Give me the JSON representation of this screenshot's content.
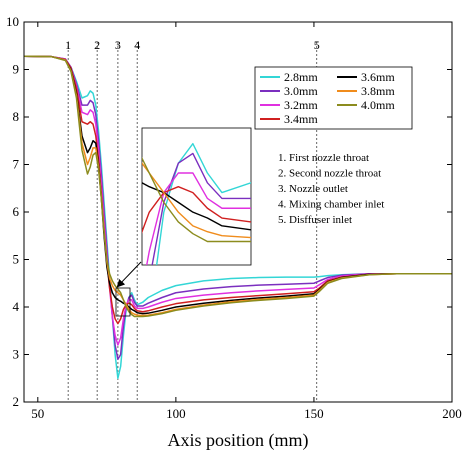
{
  "chart_data": {
    "type": "line",
    "xlabel": "Axis position (mm)",
    "ylabel": "",
    "xlim": [
      45,
      200
    ],
    "ylim": [
      2,
      10
    ],
    "x_ticks": [
      50,
      100,
      150,
      200
    ],
    "y_ticks": [
      2,
      3,
      4,
      5,
      6,
      7,
      8,
      9,
      10
    ],
    "grid": false,
    "legend_position": "top-right",
    "reference_lines": [
      {
        "label": "1",
        "x": 61
      },
      {
        "label": "2",
        "x": 71.5
      },
      {
        "label": "3",
        "x": 79
      },
      {
        "label": "4",
        "x": 86
      },
      {
        "label": "5",
        "x": 151
      }
    ],
    "annotations": [
      "1. First nozzle throat",
      "2. Second nozzle throat",
      "3. Nozzle outlet",
      "4. Mixing chamber inlet",
      "5. Disffuser inlet"
    ],
    "x": [
      45,
      55,
      60,
      62,
      64,
      66,
      68,
      69,
      70,
      71,
      72,
      73,
      74,
      75,
      76,
      77,
      78,
      79,
      80,
      81,
      82,
      83,
      84,
      85,
      86,
      88,
      90,
      95,
      100,
      110,
      120,
      130,
      140,
      150,
      152,
      155,
      160,
      170,
      180,
      190,
      200
    ],
    "series": [
      {
        "name": "2.8mm",
        "color": "#33d6d6",
        "values": [
          9.28,
          9.27,
          9.22,
          9.05,
          8.75,
          8.4,
          8.45,
          8.55,
          8.5,
          8.25,
          7.7,
          7.0,
          6.2,
          5.4,
          4.6,
          3.8,
          3.0,
          2.5,
          2.75,
          3.4,
          3.95,
          4.2,
          4.3,
          4.15,
          4.05,
          4.1,
          4.2,
          4.35,
          4.45,
          4.55,
          4.6,
          4.62,
          4.63,
          4.63,
          4.64,
          4.66,
          4.68,
          4.7,
          4.7,
          4.7,
          4.7
        ]
      },
      {
        "name": "3.0mm",
        "color": "#7b2fbf",
        "values": [
          9.28,
          9.27,
          9.22,
          9.05,
          8.7,
          8.25,
          8.25,
          8.35,
          8.3,
          8.05,
          7.5,
          6.8,
          6.0,
          5.25,
          4.5,
          3.8,
          3.2,
          2.9,
          3.0,
          3.6,
          4.0,
          4.2,
          4.25,
          4.1,
          4.02,
          4.02,
          4.08,
          4.2,
          4.3,
          4.38,
          4.43,
          4.46,
          4.48,
          4.5,
          4.55,
          4.62,
          4.67,
          4.7,
          4.7,
          4.7,
          4.7
        ]
      },
      {
        "name": "3.2mm",
        "color": "#e030e0",
        "values": [
          9.28,
          9.27,
          9.22,
          9.04,
          8.65,
          8.1,
          8.05,
          8.15,
          8.1,
          7.85,
          7.3,
          6.6,
          5.8,
          5.1,
          4.4,
          3.8,
          3.4,
          3.2,
          3.35,
          3.75,
          4.05,
          4.15,
          4.15,
          4.02,
          3.97,
          3.97,
          4.0,
          4.1,
          4.18,
          4.25,
          4.3,
          4.34,
          4.37,
          4.4,
          4.47,
          4.58,
          4.65,
          4.7,
          4.7,
          4.7,
          4.7
        ]
      },
      {
        "name": "3.4mm",
        "color": "#d02020",
        "values": [
          9.28,
          9.27,
          9.21,
          9.03,
          8.6,
          7.9,
          7.85,
          7.9,
          7.85,
          7.6,
          7.1,
          6.4,
          5.6,
          4.95,
          4.4,
          4.0,
          3.75,
          3.65,
          3.75,
          3.95,
          4.05,
          4.08,
          4.05,
          3.97,
          3.92,
          3.9,
          3.92,
          4.0,
          4.07,
          4.15,
          4.2,
          4.24,
          4.28,
          4.32,
          4.4,
          4.55,
          4.63,
          4.69,
          4.7,
          4.7,
          4.7
        ]
      },
      {
        "name": "3.6mm",
        "color": "#000000",
        "values": [
          9.28,
          9.27,
          9.2,
          9.0,
          8.5,
          7.6,
          7.25,
          7.35,
          7.5,
          7.45,
          7.0,
          6.3,
          5.5,
          4.85,
          4.5,
          4.3,
          4.2,
          4.15,
          4.12,
          4.08,
          4.05,
          4.0,
          3.95,
          3.92,
          3.88,
          3.86,
          3.87,
          3.93,
          4.0,
          4.08,
          4.14,
          4.19,
          4.23,
          4.28,
          4.37,
          4.53,
          4.62,
          4.69,
          4.7,
          4.7,
          4.7
        ]
      },
      {
        "name": "3.8mm",
        "color": "#f08c1c",
        "values": [
          9.28,
          9.27,
          9.2,
          8.98,
          8.45,
          7.45,
          7.0,
          7.15,
          7.35,
          7.35,
          6.95,
          6.3,
          5.6,
          4.95,
          4.6,
          4.45,
          4.35,
          4.3,
          4.25,
          4.15,
          4.05,
          3.95,
          3.88,
          3.85,
          3.83,
          3.82,
          3.83,
          3.88,
          3.95,
          4.04,
          4.11,
          4.16,
          4.2,
          4.25,
          4.35,
          4.52,
          4.61,
          4.68,
          4.7,
          4.7,
          4.7
        ]
      },
      {
        "name": "4.0mm",
        "color": "#8c8c1e",
        "values": [
          9.28,
          9.27,
          9.19,
          8.96,
          8.4,
          7.3,
          6.8,
          6.95,
          7.2,
          7.25,
          6.9,
          6.3,
          5.6,
          5.0,
          4.7,
          4.55,
          4.45,
          4.38,
          4.3,
          4.15,
          4.0,
          3.9,
          3.84,
          3.8,
          3.8,
          3.8,
          3.81,
          3.86,
          3.93,
          4.02,
          4.09,
          4.14,
          4.18,
          4.23,
          4.33,
          4.5,
          4.6,
          4.68,
          4.7,
          4.7,
          4.7
        ]
      }
    ]
  }
}
